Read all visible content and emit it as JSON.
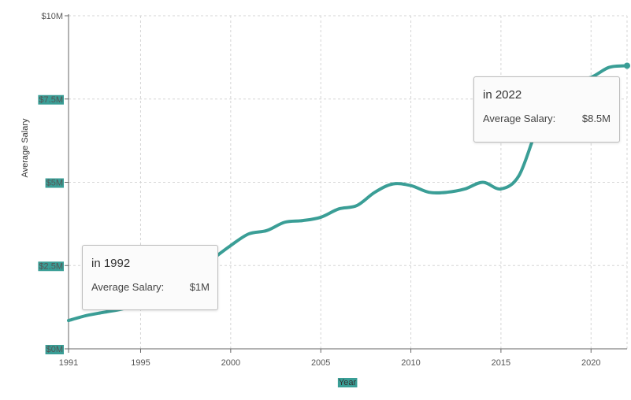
{
  "chart_data": {
    "type": "line",
    "xlabel": "Year",
    "ylabel": "Average Salary",
    "xlim": [
      1991,
      2022
    ],
    "ylim": [
      0,
      10000000
    ],
    "x_ticks": [
      1991,
      1995,
      2000,
      2005,
      2010,
      2015,
      2020
    ],
    "y_ticks": [
      {
        "value": 0,
        "label": "$0M"
      },
      {
        "value": 2500000,
        "label": "$2.5M"
      },
      {
        "value": 5000000,
        "label": "$5M"
      },
      {
        "value": 7500000,
        "label": "$7.5M"
      },
      {
        "value": 10000000,
        "label": "$10M"
      }
    ],
    "grid": true,
    "line_color": "#3a9e96",
    "series": [
      {
        "x": [
          1991,
          1992,
          1993,
          1994,
          1995,
          1996,
          1997,
          1998,
          1999,
          2000,
          2001,
          2002,
          2003,
          2004,
          2005,
          2006,
          2007,
          2008,
          2009,
          2010,
          2011,
          2012,
          2013,
          2014,
          2015,
          2016,
          2017,
          2018,
          2019,
          2020,
          2021,
          2022
        ],
        "values": [
          850000,
          1000000,
          1100000,
          1200000,
          1350000,
          1600000,
          1900000,
          2300000,
          2700000,
          3100000,
          3450000,
          3550000,
          3800000,
          3850000,
          3950000,
          4200000,
          4300000,
          4700000,
          4950000,
          4900000,
          4700000,
          4700000,
          4800000,
          5000000,
          4800000,
          5200000,
          6600000,
          7600000,
          8050000,
          8150000,
          8450000,
          8500000
        ]
      }
    ]
  },
  "tooltips": [
    {
      "title": "in 1992",
      "label": "Average Salary:",
      "value": "$1M"
    },
    {
      "title": "in 2022",
      "label": "Average Salary:",
      "value": "$8.5M"
    }
  ]
}
